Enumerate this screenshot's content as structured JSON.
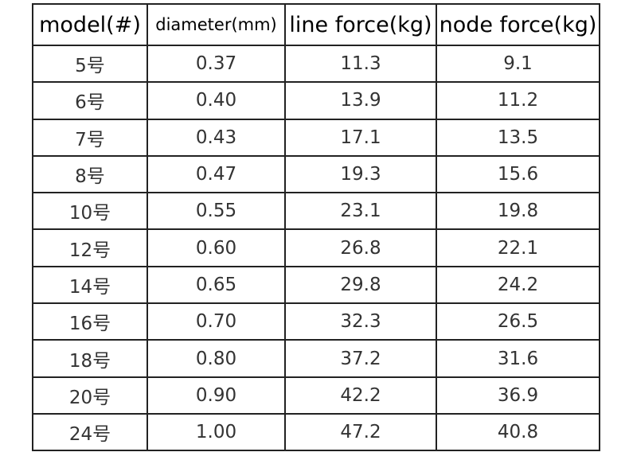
{
  "table": {
    "header": [
      "model(#)",
      "diameter(mm)",
      "line force(kg)",
      "node force(kg)"
    ],
    "rows": [
      [
        "5号",
        "0.37",
        "11.3",
        "9.1"
      ],
      [
        "6号",
        "0.40",
        "13.9",
        "11.2"
      ],
      [
        "7号",
        "0.43",
        "17.1",
        "13.5"
      ],
      [
        "8号",
        "0.47",
        "19.3",
        "15.6"
      ],
      [
        "10号",
        "0.55",
        "23.1",
        "19.8"
      ],
      [
        "12号",
        "0.60",
        "26.8",
        "22.1"
      ],
      [
        "14号",
        "0.65",
        "29.8",
        "24.2"
      ],
      [
        "16号",
        "0.70",
        "32.3",
        "26.5"
      ],
      [
        "18号",
        "0.80",
        "37.2",
        "31.6"
      ],
      [
        "20号",
        "0.90",
        "42.2",
        "36.9"
      ],
      [
        "24号",
        "1.00",
        "47.2",
        "40.8"
      ]
    ]
  }
}
